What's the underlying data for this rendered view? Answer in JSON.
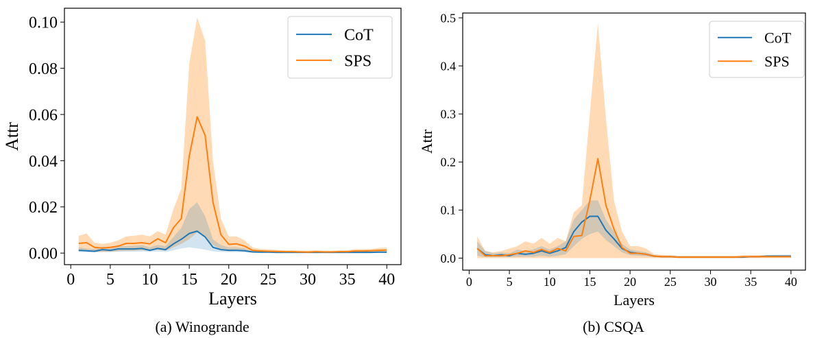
{
  "colors": {
    "cot": "#1f77b4",
    "sps": "#ff7f0e",
    "cot_band": "#1f77b4",
    "sps_band": "#ffbb78"
  },
  "chart_data": [
    {
      "type": "line",
      "caption": "(a) Winogrande",
      "xlabel": "Layers",
      "ylabel": "Attr",
      "xlim": [
        -0.8,
        41.8
      ],
      "ylim": [
        -0.005,
        0.106
      ],
      "xticks": [
        0,
        5,
        10,
        15,
        20,
        25,
        30,
        35,
        40
      ],
      "yticks": [
        0.0,
        0.02,
        0.04,
        0.06,
        0.08,
        0.1
      ],
      "ytick_labels": [
        "0.00",
        "0.02",
        "0.04",
        "0.06",
        "0.08",
        "0.10"
      ],
      "legend": "top-right",
      "x": [
        1,
        2,
        3,
        4,
        5,
        6,
        7,
        8,
        9,
        10,
        11,
        12,
        13,
        14,
        15,
        16,
        17,
        18,
        19,
        20,
        21,
        22,
        23,
        24,
        25,
        26,
        27,
        28,
        29,
        30,
        31,
        32,
        33,
        34,
        35,
        36,
        37,
        38,
        39,
        40
      ],
      "series": [
        {
          "name": "CoT",
          "values": [
            0.0012,
            0.001,
            0.0008,
            0.0015,
            0.0012,
            0.0018,
            0.0018,
            0.0018,
            0.002,
            0.0012,
            0.002,
            0.0015,
            0.004,
            0.006,
            0.0085,
            0.0095,
            0.007,
            0.0025,
            0.0015,
            0.0012,
            0.0012,
            0.001,
            0.0005,
            0.0004,
            0.0004,
            0.0003,
            0.0003,
            0.0003,
            0.0003,
            0.0003,
            0.0003,
            0.0003,
            0.0003,
            0.0003,
            0.0003,
            0.0003,
            0.0003,
            0.0003,
            0.0004,
            0.0004
          ],
          "lower": [
            0.0005,
            0.0004,
            0.0003,
            0.0005,
            0.0004,
            0.0006,
            0.0006,
            0.0006,
            0.0007,
            0.0005,
            0.0007,
            0.0005,
            0.0012,
            0.002,
            0.0025,
            0.002,
            0.0015,
            0.0008,
            0.0005,
            0.0004,
            0.0004,
            0.0003,
            0.0002,
            0.0001,
            0.0001,
            0.0001,
            0.0001,
            0.0001,
            0.0001,
            0.0001,
            0.0001,
            0.0001,
            0.0001,
            0.0001,
            0.0001,
            0.0001,
            0.0001,
            0.0001,
            0.0001,
            0.0001
          ],
          "upper": [
            0.0025,
            0.002,
            0.0018,
            0.0028,
            0.0025,
            0.003,
            0.003,
            0.0032,
            0.0035,
            0.0025,
            0.0035,
            0.003,
            0.007,
            0.011,
            0.019,
            0.022,
            0.016,
            0.006,
            0.0035,
            0.0025,
            0.0025,
            0.002,
            0.001,
            0.0008,
            0.0008,
            0.0006,
            0.0006,
            0.0006,
            0.0006,
            0.0006,
            0.0006,
            0.0006,
            0.0006,
            0.0006,
            0.0006,
            0.0006,
            0.0006,
            0.0006,
            0.0008,
            0.0008
          ]
        },
        {
          "name": "SPS",
          "values": [
            0.0042,
            0.0045,
            0.0025,
            0.0022,
            0.0025,
            0.003,
            0.0042,
            0.0042,
            0.0045,
            0.004,
            0.0062,
            0.0045,
            0.011,
            0.015,
            0.042,
            0.059,
            0.051,
            0.022,
            0.008,
            0.0038,
            0.004,
            0.003,
            0.0012,
            0.0009,
            0.0008,
            0.0007,
            0.0006,
            0.0006,
            0.0005,
            0.0004,
            0.0006,
            0.0005,
            0.0005,
            0.0006,
            0.0006,
            0.0009,
            0.0009,
            0.001,
            0.0012,
            0.0013
          ],
          "lower": [
            0.0008,
            0.001,
            0.0005,
            0.0005,
            0.0006,
            0.0008,
            0.001,
            0.001,
            0.0012,
            0.001,
            0.0015,
            0.001,
            0.0025,
            0.004,
            0.006,
            0.009,
            0.007,
            0.0035,
            0.0015,
            0.0008,
            0.001,
            0.0008,
            0.0003,
            0.0002,
            0.0002,
            0.0002,
            0.0002,
            0.0002,
            0.0001,
            0.0001,
            0.0002,
            0.0001,
            0.0001,
            0.0002,
            0.0002,
            0.0003,
            0.0003,
            0.0003,
            0.0004,
            0.0004
          ],
          "upper": [
            0.0075,
            0.0085,
            0.0045,
            0.004,
            0.0045,
            0.0055,
            0.0072,
            0.0075,
            0.008,
            0.0072,
            0.0095,
            0.008,
            0.019,
            0.028,
            0.082,
            0.102,
            0.092,
            0.04,
            0.015,
            0.0072,
            0.0072,
            0.0055,
            0.0024,
            0.0018,
            0.0016,
            0.0014,
            0.0012,
            0.0012,
            0.0011,
            0.001,
            0.0012,
            0.001,
            0.001,
            0.0012,
            0.0012,
            0.0017,
            0.0017,
            0.0018,
            0.0022,
            0.0024
          ]
        }
      ]
    },
    {
      "type": "line",
      "caption": "(b) CSQA",
      "xlabel": "Layers",
      "ylabel": "Attr",
      "xlim": [
        -0.8,
        41.8
      ],
      "ylim": [
        -0.025,
        0.51
      ],
      "xticks": [
        0,
        5,
        10,
        15,
        20,
        25,
        30,
        35,
        40
      ],
      "yticks": [
        0.0,
        0.1,
        0.2,
        0.3,
        0.4,
        0.5
      ],
      "ytick_labels": [
        "0.0",
        "0.1",
        "0.2",
        "0.3",
        "0.4",
        "0.5"
      ],
      "legend": "top-right",
      "x": [
        1,
        2,
        3,
        4,
        5,
        6,
        7,
        8,
        9,
        10,
        11,
        12,
        13,
        14,
        15,
        16,
        17,
        18,
        19,
        20,
        21,
        22,
        23,
        24,
        25,
        26,
        27,
        28,
        29,
        30,
        31,
        32,
        33,
        34,
        35,
        36,
        37,
        38,
        39,
        40
      ],
      "series": [
        {
          "name": "CoT",
          "values": [
            0.02,
            0.007,
            0.005,
            0.007,
            0.005,
            0.01,
            0.008,
            0.01,
            0.015,
            0.01,
            0.015,
            0.022,
            0.055,
            0.075,
            0.087,
            0.087,
            0.058,
            0.04,
            0.02,
            0.012,
            0.01,
            0.008,
            0.004,
            0.003,
            0.003,
            0.002,
            0.002,
            0.002,
            0.002,
            0.002,
            0.002,
            0.002,
            0.002,
            0.002,
            0.003,
            0.003,
            0.004,
            0.004,
            0.004,
            0.004
          ],
          "lower": [
            0.005,
            0.002,
            0.002,
            0.002,
            0.002,
            0.003,
            0.003,
            0.003,
            0.005,
            0.003,
            0.005,
            0.008,
            0.025,
            0.04,
            0.05,
            0.055,
            0.038,
            0.025,
            0.012,
            0.006,
            0.005,
            0.004,
            0.002,
            0.001,
            0.001,
            0.001,
            0.001,
            0.001,
            0.001,
            0.001,
            0.001,
            0.001,
            0.001,
            0.001,
            0.001,
            0.001,
            0.002,
            0.002,
            0.002,
            0.002
          ],
          "upper": [
            0.035,
            0.015,
            0.01,
            0.012,
            0.01,
            0.018,
            0.015,
            0.018,
            0.025,
            0.018,
            0.025,
            0.035,
            0.08,
            0.1,
            0.12,
            0.12,
            0.08,
            0.055,
            0.03,
            0.018,
            0.015,
            0.012,
            0.006,
            0.005,
            0.005,
            0.004,
            0.004,
            0.004,
            0.004,
            0.004,
            0.004,
            0.004,
            0.004,
            0.004,
            0.005,
            0.005,
            0.006,
            0.007,
            0.007,
            0.007
          ]
        },
        {
          "name": "SPS",
          "values": [
            0.02,
            0.005,
            0.005,
            0.005,
            0.007,
            0.01,
            0.015,
            0.012,
            0.018,
            0.012,
            0.02,
            0.015,
            0.045,
            0.047,
            0.12,
            0.207,
            0.11,
            0.06,
            0.022,
            0.01,
            0.01,
            0.008,
            0.004,
            0.003,
            0.003,
            0.002,
            0.002,
            0.002,
            0.002,
            0.002,
            0.002,
            0.002,
            0.002,
            0.003,
            0.003,
            0.003,
            0.003,
            0.003,
            0.003,
            0.003
          ],
          "lower": [
            0.0,
            0.0,
            0.0,
            0.0,
            0.0,
            0.0,
            0.0,
            0.0,
            0.0,
            0.0,
            0.0,
            0.0,
            0.0,
            0.0,
            0.0,
            0.0,
            0.0,
            0.0,
            0.0,
            0.0,
            0.0,
            0.0,
            0.0,
            0.0,
            0.0,
            0.0,
            0.0,
            0.0,
            0.0,
            0.0,
            0.0,
            0.0,
            0.0,
            0.0,
            0.0,
            0.0,
            0.0,
            0.0,
            0.0,
            0.0
          ],
          "upper": [
            0.045,
            0.015,
            0.012,
            0.015,
            0.02,
            0.025,
            0.035,
            0.03,
            0.042,
            0.03,
            0.042,
            0.035,
            0.095,
            0.11,
            0.3,
            0.488,
            0.29,
            0.12,
            0.055,
            0.025,
            0.025,
            0.02,
            0.008,
            0.007,
            0.006,
            0.005,
            0.005,
            0.005,
            0.005,
            0.005,
            0.005,
            0.005,
            0.005,
            0.006,
            0.006,
            0.006,
            0.006,
            0.006,
            0.006,
            0.006
          ]
        }
      ]
    }
  ]
}
